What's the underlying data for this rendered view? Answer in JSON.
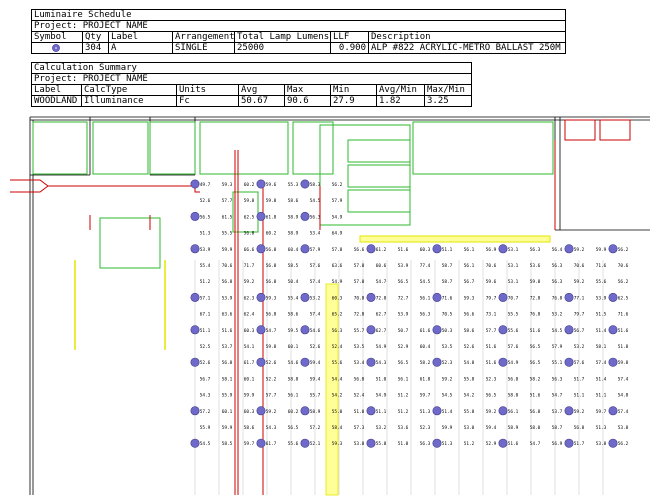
{
  "luminaire_schedule": {
    "title": "Luminaire Schedule",
    "project": "Project: PROJECT NAME",
    "headers": [
      "Symbol",
      "Qty",
      "Label",
      "Arrangement",
      "Total Lamp Lumens",
      "LLF",
      "Description"
    ],
    "rows": [
      {
        "symbol_icon": "luminaire-circle-icon",
        "qty": "304",
        "label": "A",
        "arrangement": "SINGLE",
        "lumens": "25000",
        "llf": "0.900",
        "description": "ALP #822 ACRYLIC-METRO BALLAST 250M"
      }
    ]
  },
  "calculation_summary": {
    "title": "Calculation Summary",
    "project": "Project: PROJECT NAME",
    "headers": [
      "Label",
      "CalcType",
      "Units",
      "Avg",
      "Max",
      "Min",
      "Avg/Min",
      "Max/Min"
    ],
    "rows": [
      {
        "label": "WOODLAND",
        "calctype": "Illuminance",
        "units": "Fc",
        "avg": "50.67",
        "max": "90.6",
        "min": "27.9",
        "avg_min": "1.82",
        "max_min": "3.25"
      }
    ]
  },
  "plan": {
    "colors": {
      "wall": "#000000",
      "room": "#2eb82e",
      "red_line": "#cc0000",
      "yellow": "#e6e600",
      "yellow_fill": "#ffff99",
      "symbol": "#6f69c9"
    },
    "grid_values": [
      [
        "49.7",
        "59.3",
        "60.2",
        "59.6",
        "55.3",
        "58.3",
        "56.2"
      ],
      [
        "52.6",
        "57.7",
        "59.8",
        "59.8",
        "58.6",
        "54.5",
        "57.9"
      ],
      [
        "56.5",
        "61.5",
        "62.5",
        "61.8",
        "58.9",
        "56.3",
        "54.9"
      ],
      [
        "51.3",
        "55.5",
        "56.8",
        "60.2",
        "58.9",
        "53.4",
        "64.9"
      ],
      [
        "53.9",
        "59.9",
        "66.6",
        "56.8",
        "60.4",
        "57.9",
        "57.8",
        "56.6",
        "61.2",
        "51.6",
        "60.3",
        "51.1",
        "56.1",
        "56.9",
        "53.1",
        "56.3",
        "56.4",
        "59.2",
        "59.9",
        "56.2"
      ],
      [
        "55.4",
        "70.6",
        "71.7",
        "56.8",
        "58.5",
        "57.6",
        "63.6",
        "57.8",
        "60.6",
        "53.9",
        "77.4",
        "58.7",
        "56.1",
        "70.6",
        "53.1",
        "53.6",
        "56.3",
        "70.6",
        "71.6",
        "70.6"
      ],
      [
        "51.2",
        "56.8",
        "59.2",
        "56.8",
        "50.4",
        "57.4",
        "54.9",
        "57.8",
        "54.7",
        "56.5",
        "54.5",
        "58.7",
        "56.7",
        "59.6",
        "53.1",
        "59.8",
        "56.3",
        "59.2",
        "55.6",
        "56.2"
      ],
      [
        "57.1",
        "53.9",
        "62.3",
        "59.3",
        "55.4",
        "53.2",
        "60.3",
        "70.8",
        "72.8",
        "72.7",
        "56.1",
        "71.6",
        "59.3",
        "79.7",
        "70.7",
        "72.8",
        "76.8",
        "77.1",
        "53.9",
        "62.5"
      ],
      [
        "67.1",
        "63.6",
        "62.4",
        "56.8",
        "58.6",
        "57.4",
        "65.2",
        "72.8",
        "62.7",
        "53.9",
        "56.3",
        "70.5",
        "56.6",
        "73.1",
        "55.5",
        "76.8",
        "53.2",
        "79.7",
        "51.5",
        "71.6"
      ],
      [
        "51.1",
        "51.6",
        "60.3",
        "54.7",
        "59.5",
        "54.6",
        "56.3",
        "55.7",
        "62.7",
        "50.7",
        "61.6",
        "50.3",
        "58.6",
        "57.7",
        "55.6",
        "51.6",
        "54.5",
        "56.7",
        "51.4",
        "51.6"
      ],
      [
        "52.5",
        "53.7",
        "54.1",
        "59.8",
        "60.1",
        "52.6",
        "52.4",
        "53.5",
        "54.9",
        "52.9",
        "60.4",
        "53.5",
        "52.6",
        "51.6",
        "57.6",
        "56.5",
        "57.9",
        "53.2",
        "58.1",
        "51.8"
      ],
      [
        "52.6",
        "56.8",
        "61.7",
        "52.6",
        "54.6",
        "59.4",
        "55.6",
        "53.4",
        "54.3",
        "56.5",
        "58.2",
        "52.3",
        "54.8",
        "51.6",
        "54.9",
        "56.5",
        "55.1",
        "57.6",
        "57.4",
        "59.8"
      ],
      [
        "56.7",
        "58.1",
        "60.1",
        "52.2",
        "58.8",
        "59.4",
        "54.4",
        "56.0",
        "51.0",
        "56.1",
        "61.8",
        "59.2",
        "55.8",
        "52.3",
        "56.0",
        "58.2",
        "56.3",
        "51.7",
        "51.4",
        "57.4"
      ],
      [
        "54.3",
        "55.9",
        "59.9",
        "57.7",
        "56.1",
        "55.7",
        "54.2",
        "52.4",
        "54.9",
        "51.2",
        "59.7",
        "54.5",
        "54.2",
        "56.5",
        "58.0",
        "51.6",
        "54.7",
        "51.1",
        "51.1",
        "54.8"
      ],
      [
        "57.2",
        "60.1",
        "60.3",
        "59.2",
        "60.2",
        "58.9",
        "55.0",
        "51.0",
        "51.1",
        "51.2",
        "51.3",
        "51.4",
        "55.8",
        "59.2",
        "56.1",
        "56.8",
        "53.7",
        "59.2",
        "59.7",
        "57.4"
      ],
      [
        "55.9",
        "59.9",
        "58.6",
        "54.3",
        "56.5",
        "57.2",
        "58.4",
        "57.3",
        "53.2",
        "53.6",
        "52.3",
        "59.9",
        "53.0",
        "59.4",
        "58.9",
        "58.0",
        "58.7",
        "56.8",
        "51.3",
        "53.8"
      ],
      [
        "54.5",
        "58.5",
        "59.7",
        "61.7",
        "55.6",
        "52.1",
        "59.3",
        "53.8",
        "55.8",
        "51.8",
        "56.3",
        "51.3",
        "51.2",
        "52.9",
        "51.6",
        "54.7",
        "56.9",
        "51.7",
        "53.8",
        "56.2"
      ]
    ]
  }
}
